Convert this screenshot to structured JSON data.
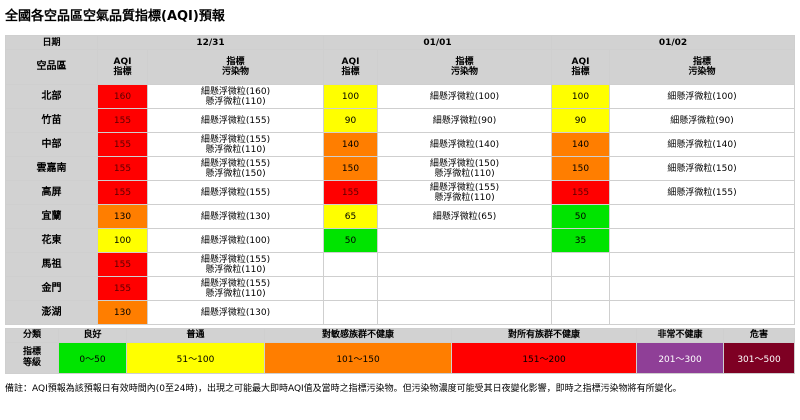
{
  "title": "全國各空品區空氣品質指標(AQI)預報",
  "header": {
    "date_label": "日期",
    "region_label": "空品區",
    "aqi_label_1": "AQI",
    "aqi_label_2": "指標",
    "pol_label_1": "指標",
    "pol_label_2": "污染物",
    "dates": [
      "12/31",
      "01/01",
      "01/02"
    ]
  },
  "rows": [
    {
      "region": "北部",
      "days": [
        {
          "aqi": "160",
          "color": "#ff0000",
          "pol": [
            "細懸浮微粒(160)",
            "懸浮微粒(110)"
          ]
        },
        {
          "aqi": "100",
          "color": "#ffff00",
          "pol": [
            "細懸浮微粒(100)"
          ]
        },
        {
          "aqi": "100",
          "color": "#ffff00",
          "pol": [
            "細懸浮微粒(100)"
          ]
        }
      ]
    },
    {
      "region": "竹苗",
      "days": [
        {
          "aqi": "155",
          "color": "#ff0000",
          "pol": [
            "細懸浮微粒(155)"
          ]
        },
        {
          "aqi": "90",
          "color": "#ffff00",
          "pol": [
            "細懸浮微粒(90)"
          ]
        },
        {
          "aqi": "90",
          "color": "#ffff00",
          "pol": [
            "細懸浮微粒(90)"
          ]
        }
      ]
    },
    {
      "region": "中部",
      "days": [
        {
          "aqi": "155",
          "color": "#ff0000",
          "pol": [
            "細懸浮微粒(155)",
            "懸浮微粒(110)"
          ]
        },
        {
          "aqi": "140",
          "color": "#ff7e00",
          "pol": [
            "細懸浮微粒(140)"
          ]
        },
        {
          "aqi": "140",
          "color": "#ff7e00",
          "pol": [
            "細懸浮微粒(140)"
          ]
        }
      ]
    },
    {
      "region": "雲嘉南",
      "days": [
        {
          "aqi": "155",
          "color": "#ff0000",
          "pol": [
            "細懸浮微粒(155)",
            "懸浮微粒(150)"
          ]
        },
        {
          "aqi": "150",
          "color": "#ff7e00",
          "pol": [
            "細懸浮微粒(150)",
            "懸浮微粒(110)"
          ]
        },
        {
          "aqi": "150",
          "color": "#ff7e00",
          "pol": [
            "細懸浮微粒(150)"
          ]
        }
      ]
    },
    {
      "region": "高屏",
      "days": [
        {
          "aqi": "155",
          "color": "#ff0000",
          "pol": [
            "細懸浮微粒(155)"
          ]
        },
        {
          "aqi": "155",
          "color": "#ff0000",
          "pol": [
            "細懸浮微粒(155)",
            "懸浮微粒(110)"
          ]
        },
        {
          "aqi": "155",
          "color": "#ff0000",
          "pol": [
            "細懸浮微粒(155)"
          ]
        }
      ]
    },
    {
      "region": "宜蘭",
      "days": [
        {
          "aqi": "130",
          "color": "#ff7e00",
          "pol": [
            "細懸浮微粒(130)"
          ]
        },
        {
          "aqi": "65",
          "color": "#ffff00",
          "pol": [
            "細懸浮微粒(65)"
          ]
        },
        {
          "aqi": "50",
          "color": "#00e400",
          "pol": []
        }
      ]
    },
    {
      "region": "花東",
      "days": [
        {
          "aqi": "100",
          "color": "#ffff00",
          "pol": [
            "細懸浮微粒(100)"
          ]
        },
        {
          "aqi": "50",
          "color": "#00e400",
          "pol": []
        },
        {
          "aqi": "35",
          "color": "#00e400",
          "pol": []
        }
      ]
    },
    {
      "region": "馬祖",
      "days": [
        {
          "aqi": "155",
          "color": "#ff0000",
          "pol": [
            "細懸浮微粒(155)",
            "懸浮微粒(110)"
          ]
        },
        {
          "aqi": "",
          "color": "",
          "pol": []
        },
        {
          "aqi": "",
          "color": "",
          "pol": []
        }
      ]
    },
    {
      "region": "金門",
      "days": [
        {
          "aqi": "155",
          "color": "#ff0000",
          "pol": [
            "細懸浮微粒(155)",
            "懸浮微粒(110)"
          ]
        },
        {
          "aqi": "",
          "color": "",
          "pol": []
        },
        {
          "aqi": "",
          "color": "",
          "pol": []
        }
      ]
    },
    {
      "region": "澎湖",
      "days": [
        {
          "aqi": "130",
          "color": "#ff7e00",
          "pol": [
            "細懸浮微粒(130)"
          ]
        },
        {
          "aqi": "",
          "color": "",
          "pol": []
        },
        {
          "aqi": "",
          "color": "",
          "pol": []
        }
      ]
    }
  ],
  "legend": {
    "category_label": "分類",
    "level_label_1": "指標",
    "level_label_2": "等級",
    "levels": [
      {
        "name": "良好",
        "range": "0～50",
        "color": "#00e400",
        "text_color": "#000000"
      },
      {
        "name": "普通",
        "range": "51～100",
        "color": "#ffff00",
        "text_color": "#000000"
      },
      {
        "name": "對敏感族群不健康",
        "range": "101～150",
        "color": "#ff7e00",
        "text_color": "#000000"
      },
      {
        "name": "對所有族群不健康",
        "range": "151～200",
        "color": "#ff0000",
        "text_color": "#000000"
      },
      {
        "name": "非常不健康",
        "range": "201～300",
        "color": "#8f3f97",
        "text_color": "#ffffff"
      },
      {
        "name": "危害",
        "range": "301～500",
        "color": "#7e0023",
        "text_color": "#ffffff"
      }
    ]
  },
  "note": "備註：AQI預報為該預報日有效時間內(0至24時)，出現之可能最大即時AQI值及當時之指標污染物。但污染物濃度可能受其日夜變化影響，即時之指標污染物將有所變化。"
}
